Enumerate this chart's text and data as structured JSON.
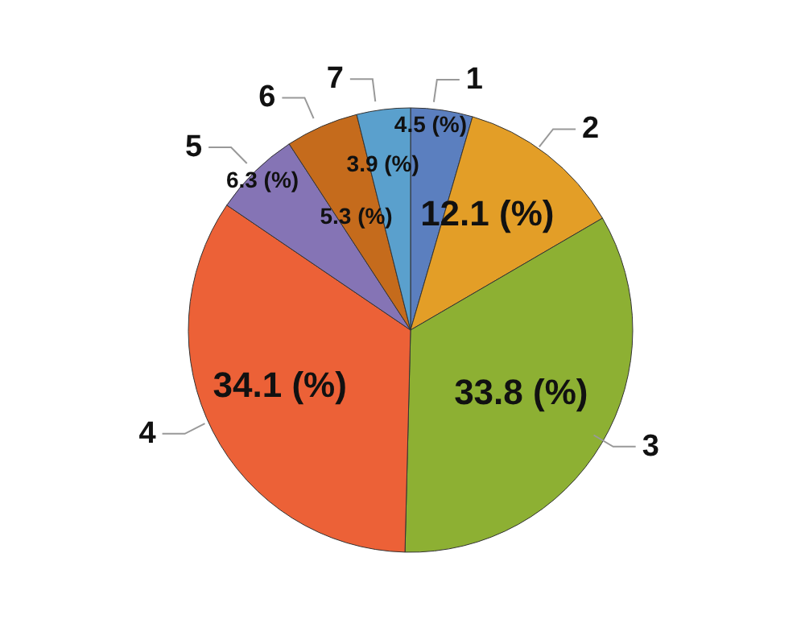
{
  "chart_data": {
    "type": "pie",
    "categories": [
      "1",
      "2",
      "3",
      "4",
      "5",
      "6",
      "7"
    ],
    "values": [
      4.5,
      12.1,
      33.8,
      34.1,
      6.3,
      5.3,
      3.9
    ],
    "value_labels": [
      "4.5 (%)",
      "12.1 (%)",
      "33.8 (%)",
      "34.1 (%)",
      "6.3 (%)",
      "5.3 (%)",
      "3.9 (%)"
    ],
    "colors": [
      "#5b7fbf",
      "#e39e27",
      "#8db033",
      "#ec6137",
      "#8574b5",
      "#c56b1c",
      "#5aa0cd"
    ],
    "legend": false
  }
}
